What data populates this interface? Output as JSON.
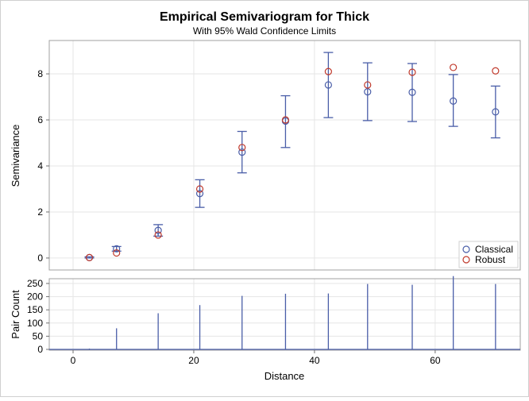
{
  "chart_data": {
    "type": "scatter",
    "title": "Empirical Semivariogram for Thick",
    "subtitle": "With 95% Wald Confidence Limits",
    "xlabel": "Distance",
    "xlim": [
      -3.95,
      74.1
    ],
    "xticks": [
      0,
      20,
      40,
      60
    ],
    "x": [
      2.7,
      7.2,
      14.1,
      21.0,
      28.0,
      35.2,
      42.3,
      48.8,
      56.2,
      63.0,
      70.0
    ],
    "top": {
      "ylabel": "Semivariance",
      "ylim": [
        -0.52,
        9.45
      ],
      "yticks": [
        0,
        2,
        4,
        6,
        8
      ],
      "series": [
        {
          "name": "Classical",
          "color": "#4a5ea8",
          "values": [
            0.02,
            0.4,
            1.2,
            2.8,
            4.6,
            5.95,
            7.52,
            7.22,
            7.2,
            6.82,
            6.35
          ]
        },
        {
          "name": "Robust",
          "color": "#c0392b",
          "values": [
            0.02,
            0.22,
            1.0,
            3.0,
            4.8,
            6.0,
            8.1,
            7.52,
            8.07,
            8.28,
            8.13
          ]
        }
      ],
      "lower": [
        0.0,
        0.3,
        0.95,
        2.2,
        3.7,
        4.8,
        6.1,
        5.97,
        5.93,
        5.72,
        5.22
      ],
      "upper": [
        0.05,
        0.5,
        1.45,
        3.4,
        5.5,
        7.05,
        8.93,
        8.48,
        8.45,
        7.97,
        7.47
      ],
      "legend": "bottom-right"
    },
    "bottom": {
      "type": "bar",
      "ylabel": "Pair Count",
      "ylim": [
        -3,
        268
      ],
      "yticks": [
        0,
        50,
        100,
        150,
        200,
        250
      ],
      "values": [
        3,
        80,
        137,
        168,
        203,
        211,
        212,
        248,
        245,
        278,
        248
      ]
    },
    "grid": true
  }
}
